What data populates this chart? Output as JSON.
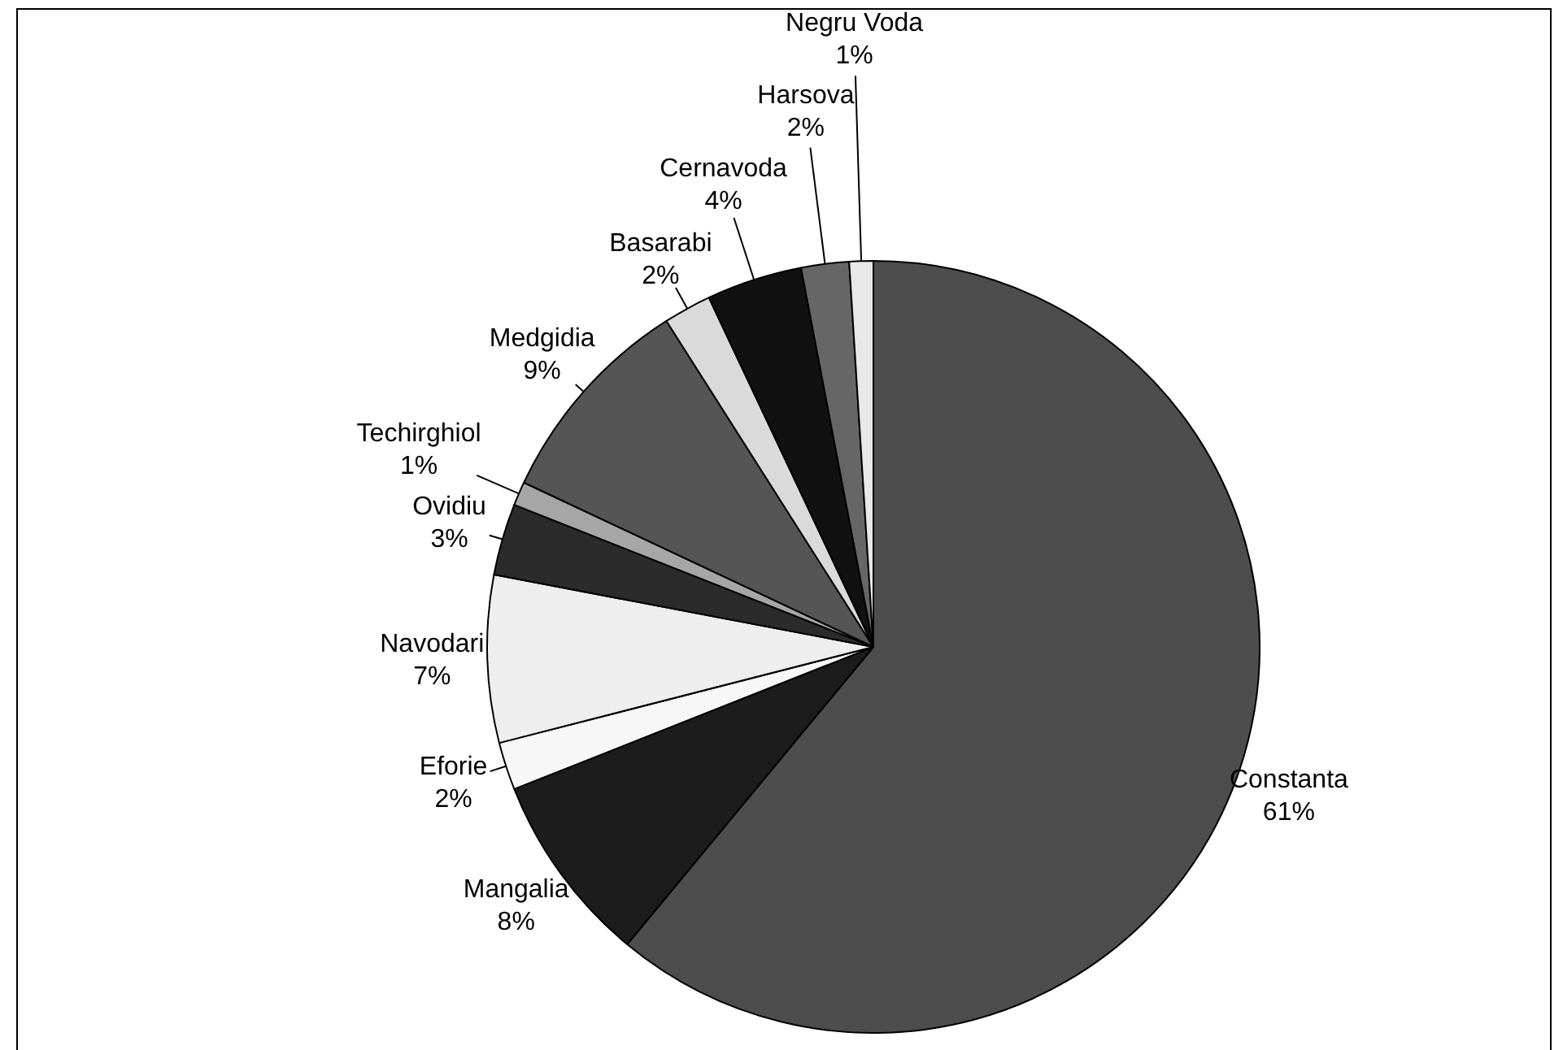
{
  "chart_data": {
    "type": "pie",
    "categories": [
      "Constanta",
      "Mangalia",
      "Eforie",
      "Navodari",
      "Ovidiu",
      "Techirghiol",
      "Medgidia",
      "Basarabi",
      "Cernavoda",
      "Harsova",
      "Negru Voda"
    ],
    "values": [
      61,
      8,
      2,
      7,
      3,
      1,
      9,
      2,
      4,
      2,
      1
    ],
    "value_labels": [
      "61%",
      "8%",
      "2%",
      "7%",
      "3%",
      "1%",
      "9%",
      "2%",
      "4%",
      "2%",
      "1%"
    ],
    "colors": [
      "#4d4d4d",
      "#1c1c1c",
      "#f7f7f7",
      "#eeeeee",
      "#2b2b2b",
      "#a6a6a6",
      "#555555",
      "#dadada",
      "#111111",
      "#666666",
      "#e8e8e8"
    ],
    "legend": false
  }
}
